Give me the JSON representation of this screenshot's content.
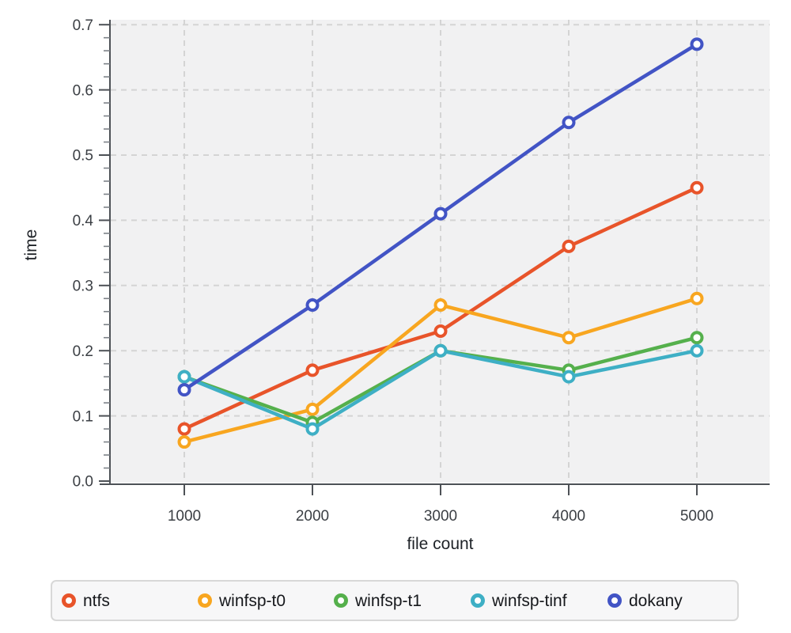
{
  "chart_data": {
    "type": "line",
    "title": "",
    "xlabel": "file count",
    "ylabel": "time",
    "x": [
      1000,
      2000,
      3000,
      4000,
      5000
    ],
    "series": [
      {
        "name": "ntfs",
        "color": "#e8542a",
        "values": [
          0.08,
          0.17,
          0.23,
          0.36,
          0.45
        ]
      },
      {
        "name": "winfsp-t0",
        "color": "#f8a620",
        "values": [
          0.06,
          0.11,
          0.27,
          0.22,
          0.28
        ]
      },
      {
        "name": "winfsp-t1",
        "color": "#55b04c",
        "values": [
          0.16,
          0.09,
          0.2,
          0.17,
          0.22
        ]
      },
      {
        "name": "winfsp-tinf",
        "color": "#3eafc5",
        "values": [
          0.16,
          0.08,
          0.2,
          0.16,
          0.2
        ]
      },
      {
        "name": "dokany",
        "color": "#4254c5",
        "values": [
          0.14,
          0.27,
          0.41,
          0.55,
          0.67
        ]
      }
    ],
    "ylim": [
      0.0,
      0.7
    ],
    "yticks": [
      0.0,
      0.1,
      0.2,
      0.3,
      0.4,
      0.5,
      0.6,
      0.7
    ],
    "y_tick_labels": [
      "0.0",
      "0.1",
      "0.2",
      "0.3",
      "0.4",
      "0.5",
      "0.6",
      "0.7"
    ],
    "y_minor_step": 0.02,
    "xticks": [
      1000,
      2000,
      3000,
      4000,
      5000
    ],
    "x_tick_labels": [
      "1000",
      "2000",
      "3000",
      "4000",
      "5000"
    ],
    "grid": "dashed-major-both-axes",
    "legend_position": "bottom",
    "marker": "open-circle"
  },
  "style": {
    "plot_bg": "#f1f1f2",
    "grid_color": "#d4d4d4",
    "axis_color": "#4d5156",
    "minor_tick_color": "#7d8288",
    "tick_label_color": "#3b3f44",
    "axis_title_color": "#1f2328"
  }
}
